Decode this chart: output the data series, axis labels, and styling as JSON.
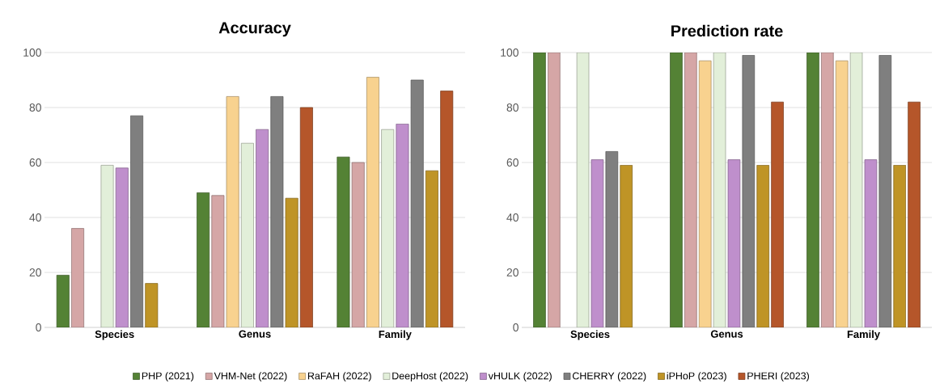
{
  "chart_data": [
    {
      "type": "bar",
      "title": "Accuracy",
      "categories": [
        "Species",
        "Genus",
        "Family"
      ],
      "ylim": [
        0,
        100
      ],
      "yticks": [
        0,
        20,
        40,
        60,
        80,
        100
      ],
      "grid": "y",
      "legend": "bottom",
      "series": [
        {
          "name": "PHP (2021)",
          "color": "#548235",
          "values": [
            19,
            49,
            62
          ]
        },
        {
          "name": "VHM-Net (2022)",
          "color": "#d5a6a6",
          "values": [
            36,
            48,
            60
          ]
        },
        {
          "name": "RaFAH (2022)",
          "color": "#f8d28f",
          "values": [
            null,
            84,
            91
          ]
        },
        {
          "name": "DeepHost (2022)",
          "color": "#e2efd9",
          "values": [
            59,
            67,
            72
          ]
        },
        {
          "name": "vHULK (2022)",
          "color": "#bf8fcc",
          "values": [
            58,
            72,
            74
          ]
        },
        {
          "name": "CHERRY (2022)",
          "color": "#7f7f7f",
          "values": [
            77,
            84,
            90
          ]
        },
        {
          "name": "iPHoP (2023)",
          "color": "#bf9426",
          "values": [
            16,
            47,
            57
          ]
        },
        {
          "name": "PHERI (2023)",
          "color": "#b5562a",
          "values": [
            null,
            80,
            86
          ]
        }
      ]
    },
    {
      "type": "bar",
      "title": "Prediction rate",
      "categories": [
        "Species",
        "Genus",
        "Family"
      ],
      "ylim": [
        0,
        100
      ],
      "yticks": [
        0,
        20,
        40,
        60,
        80,
        100
      ],
      "grid": "y",
      "series": [
        {
          "color": "#548235",
          "values": [
            100,
            100,
            100
          ]
        },
        {
          "color": "#d5a6a6",
          "values": [
            100,
            100,
            100
          ]
        },
        {
          "color": "#f8d28f",
          "values": [
            null,
            97,
            97
          ]
        },
        {
          "color": "#e2efd9",
          "values": [
            100,
            100,
            100
          ]
        },
        {
          "color": "#bf8fcc",
          "values": [
            61,
            61,
            61
          ]
        },
        {
          "color": "#7f7f7f",
          "values": [
            64,
            99,
            99
          ]
        },
        {
          "color": "#bf9426",
          "values": [
            59,
            59,
            59
          ]
        },
        {
          "color": "#b5562a",
          "values": [
            null,
            82,
            82
          ]
        }
      ]
    }
  ]
}
